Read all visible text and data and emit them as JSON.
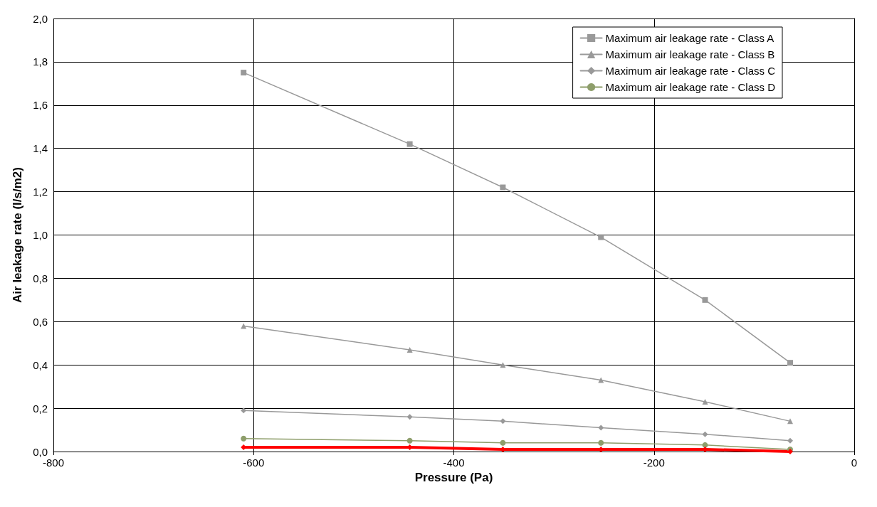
{
  "chart_data": {
    "type": "line",
    "xlabel": "Pressure (Pa)",
    "ylabel": "Air leakage rate (l/s/m2)",
    "x": [
      -610,
      -444,
      -351,
      -253,
      -149,
      -64
    ],
    "series": [
      {
        "name": "Maximum air leakage rate - Class A",
        "color": "#999999",
        "marker": "square",
        "values": [
          1.75,
          1.42,
          1.22,
          0.99,
          0.7,
          0.41
        ]
      },
      {
        "name": "Maximum air leakage rate - Class B",
        "color": "#999999",
        "marker": "triangle",
        "values": [
          0.58,
          0.47,
          0.4,
          0.33,
          0.23,
          0.14
        ]
      },
      {
        "name": "Maximum air leakage rate - Class C",
        "color": "#999999",
        "marker": "diamond",
        "values": [
          0.19,
          0.16,
          0.14,
          0.11,
          0.08,
          0.05
        ]
      },
      {
        "name": "Maximum air leakage rate - Class D",
        "color": "#8e9e6b",
        "marker": "circle",
        "values": [
          0.06,
          0.05,
          0.04,
          0.04,
          0.03,
          0.01
        ]
      },
      {
        "color": "#ff0000",
        "marker": "diamond",
        "values": [
          0.02,
          0.02,
          0.01,
          0.01,
          0.01,
          0.0
        ]
      }
    ],
    "xlim": [
      -800,
      0
    ],
    "xticks": [
      -800,
      -600,
      -400,
      -200,
      0
    ],
    "ylim": [
      0,
      2
    ],
    "yticks": [
      {
        "value": 0,
        "label": "0,0"
      },
      {
        "value": 0.2,
        "label": "0,2"
      },
      {
        "value": 0.4,
        "label": "0,4"
      },
      {
        "value": 0.6,
        "label": "0,6"
      },
      {
        "value": 0.8,
        "label": "0,8"
      },
      {
        "value": 1.0,
        "label": "1,0"
      },
      {
        "value": 1.2,
        "label": "1,2"
      },
      {
        "value": 1.4,
        "label": "1,4"
      },
      {
        "value": 1.6,
        "label": "1,6"
      },
      {
        "value": 1.8,
        "label": "1,8"
      },
      {
        "value": 2.0,
        "label": "2,0"
      }
    ],
    "grid": true,
    "legend": "top right",
    "line_style": "solid"
  }
}
